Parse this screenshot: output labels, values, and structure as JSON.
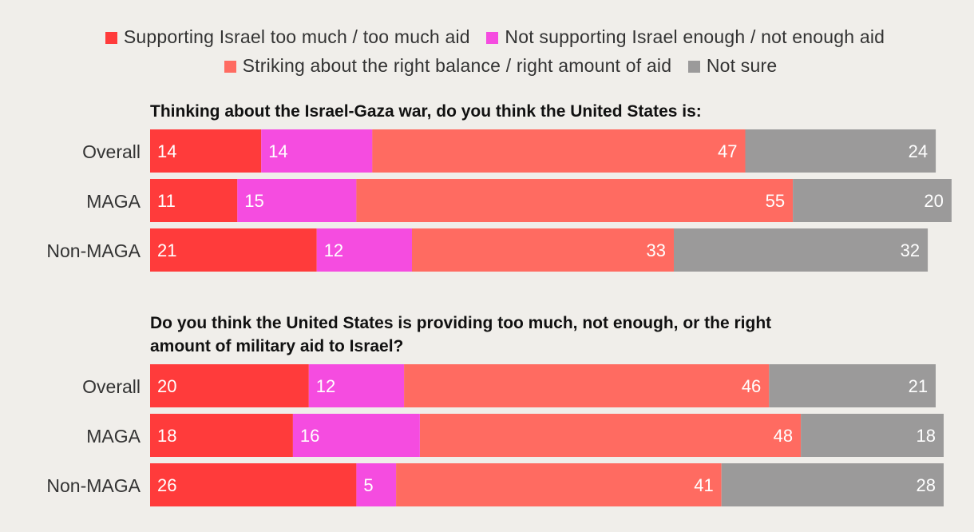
{
  "legend": [
    {
      "label": "Supporting Israel too much / too much aid",
      "color": "#ff3b3b"
    },
    {
      "label": "Not supporting Israel enough / not enough aid",
      "color": "#f54ce0"
    },
    {
      "label": "Striking about the right balance / right amount of aid",
      "color": "#ff6b61"
    },
    {
      "label": "Not sure",
      "color": "#9b9a9a"
    }
  ],
  "chart_data": [
    {
      "type": "bar",
      "orientation": "horizontal",
      "stacked": true,
      "title": "Thinking about the Israel-Gaza war, do you think the United States is:",
      "categories": [
        "Overall",
        "MAGA",
        "Non-MAGA"
      ],
      "series": [
        {
          "name": "Supporting Israel too much / too much aid",
          "values": [
            14,
            11,
            21
          ]
        },
        {
          "name": "Not supporting Israel enough / not enough aid",
          "values": [
            14,
            15,
            12
          ]
        },
        {
          "name": "Striking about the right balance / right amount of aid",
          "values": [
            47,
            55,
            33
          ]
        },
        {
          "name": "Not sure",
          "values": [
            24,
            20,
            32
          ]
        }
      ]
    },
    {
      "type": "bar",
      "orientation": "horizontal",
      "stacked": true,
      "title": "Do you think the United States is providing too much, not enough, or the right amount of military aid to Israel?",
      "categories": [
        "Overall",
        "MAGA",
        "Non-MAGA"
      ],
      "series": [
        {
          "name": "Supporting Israel too much / too much aid",
          "values": [
            20,
            18,
            26
          ]
        },
        {
          "name": "Not supporting Israel enough / not enough aid",
          "values": [
            12,
            16,
            5
          ]
        },
        {
          "name": "Striking about the right balance / right amount of aid",
          "values": [
            46,
            48,
            41
          ]
        },
        {
          "name": "Not sure",
          "values": [
            21,
            18,
            28
          ]
        }
      ]
    }
  ]
}
